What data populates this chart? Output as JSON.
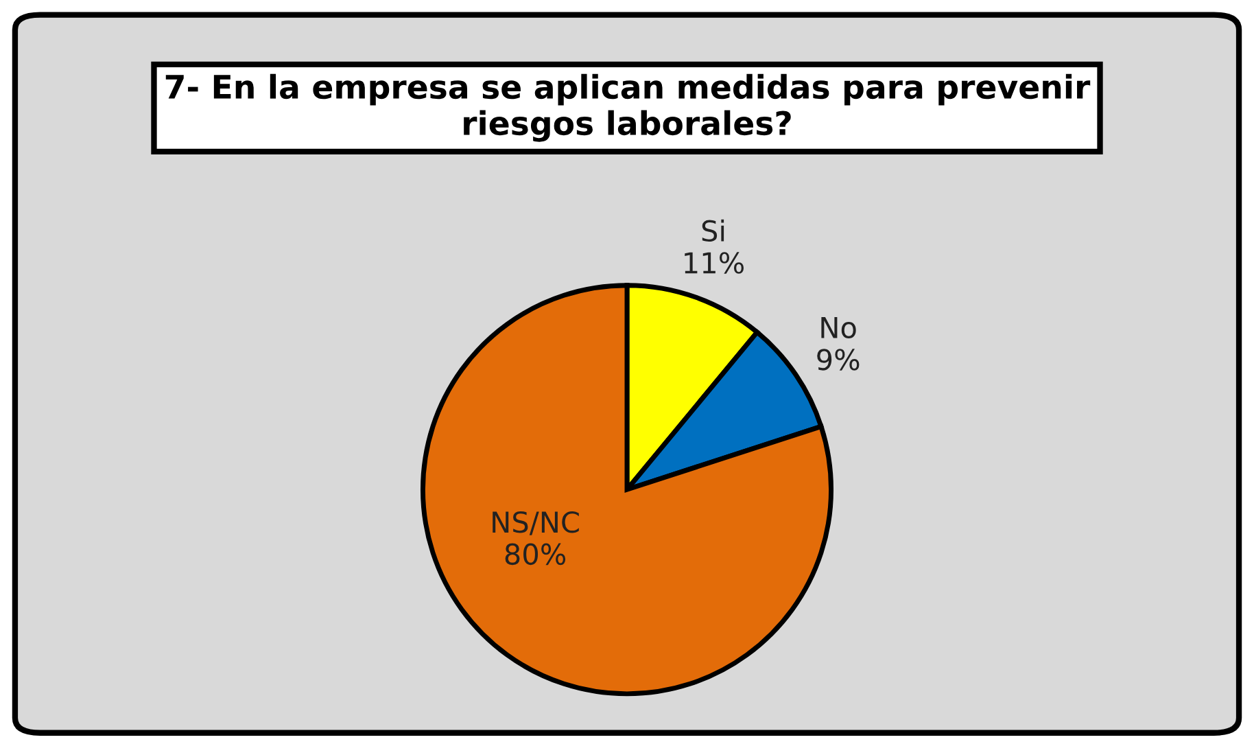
{
  "chart_data": {
    "type": "pie",
    "title": "7- En la empresa se aplican medidas para prevenir\nriesgos laborales?",
    "categories": [
      "Si",
      "No",
      "NS/NC"
    ],
    "values": [
      11,
      9,
      80
    ],
    "colors": [
      "#ffff00",
      "#0070c0",
      "#e36c09"
    ],
    "value_labels": [
      "11%",
      "9%",
      "80%"
    ]
  }
}
